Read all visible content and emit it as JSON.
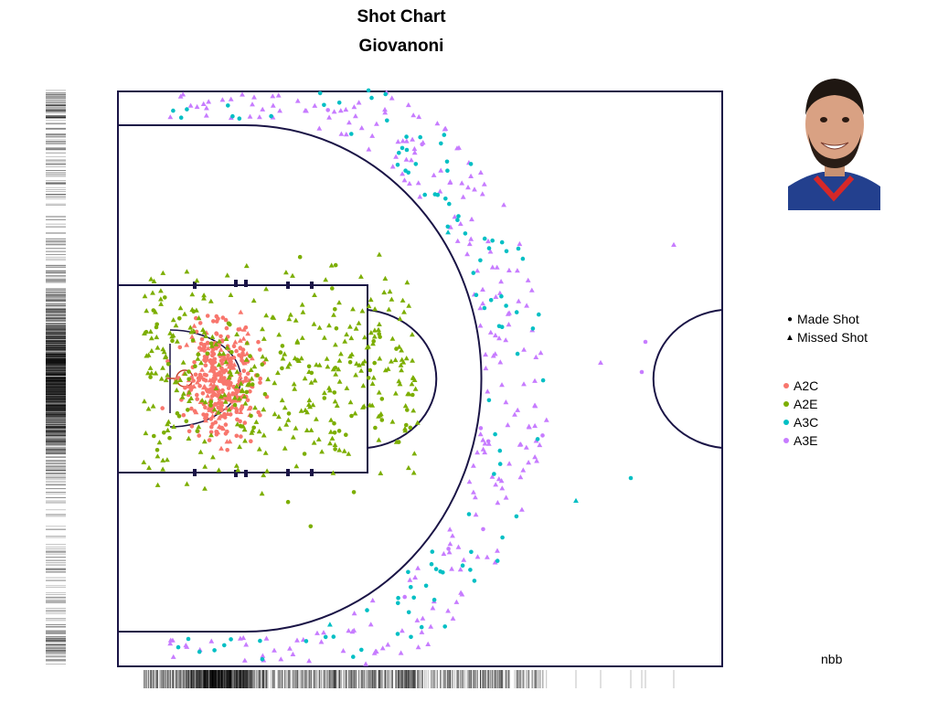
{
  "chart_data": {
    "type": "scatter",
    "title": "Shot Chart",
    "subtitle": "Giovanoni",
    "xlabel": "",
    "ylabel": "",
    "legend_position": "right",
    "grid": false,
    "shape_legend": [
      {
        "label": "Made Shot",
        "marker": "circle"
      },
      {
        "label": "Missed Shot",
        "marker": "triangle"
      }
    ],
    "series": [
      {
        "name": "A2C",
        "color": "#f8766d"
      },
      {
        "name": "A2E",
        "color": "#7cae00"
      },
      {
        "name": "A3C",
        "color": "#00bfc4"
      },
      {
        "name": "A3E",
        "color": "#c77cff"
      }
    ],
    "rug_marks": [
      "x-axis",
      "y-axis"
    ]
  },
  "source_label": "nbb",
  "photo": {
    "alt": "player-photo"
  }
}
